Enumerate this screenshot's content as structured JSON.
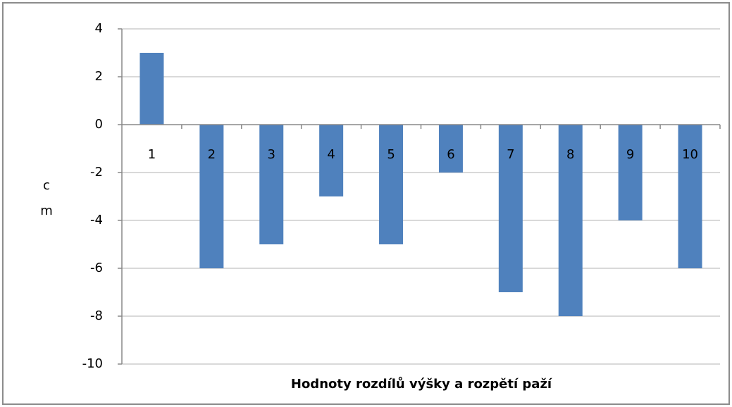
{
  "chart_data": {
    "type": "bar",
    "x_label": "Hodnoty rozdílů výšky a rozpětí paží",
    "y_label": [
      "c",
      "m"
    ],
    "categories": [
      "1",
      "2",
      "3",
      "4",
      "5",
      "6",
      "7",
      "8",
      "9",
      "10"
    ],
    "values": [
      3,
      -6,
      -5,
      -3,
      -5,
      -2,
      -7,
      -8,
      -4,
      -6
    ],
    "color": "#4f81bd",
    "ylim": [
      -10,
      4
    ],
    "yticks": [
      -10,
      -8,
      -6,
      -4,
      -2,
      0,
      2,
      4
    ],
    "grid": true
  }
}
